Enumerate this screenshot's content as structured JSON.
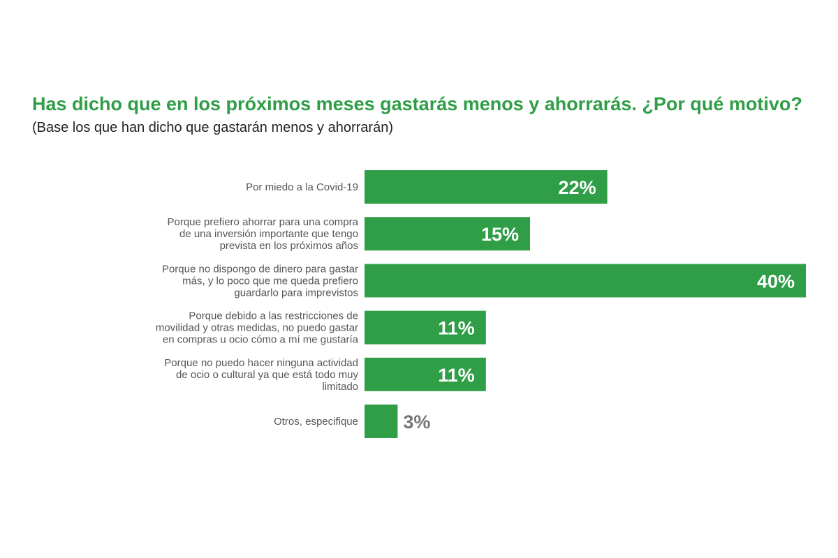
{
  "header": {
    "title": "Has dicho que en los próximos meses gastarás menos y ahorrarás. ¿Por qué motivo?",
    "subtitle": "(Base los que han dicho que gastarán menos y ahorrarán)"
  },
  "chart_data": {
    "type": "bar",
    "orientation": "horizontal",
    "title": "Has dicho que en los próximos meses gastarás menos y ahorrarás. ¿Por qué motivo?",
    "subtitle": "(Base los que han dicho que gastarán menos y ahorrarán)",
    "xlabel": "",
    "ylabel": "",
    "grid": false,
    "categories": [
      [
        "Por miedo a la Covid-19"
      ],
      [
        "Porque prefiero ahorrar para una compra",
        "de una inversión importante que tengo",
        "prevista en los próximos años"
      ],
      [
        "Porque no dispongo de dinero para gastar",
        "más, y lo poco que me queda prefiero",
        "guardarlo para imprevistos"
      ],
      [
        "Porque debido a las restricciones de",
        "movilidad y otras medidas, no puedo gastar",
        "en compras u ocio cómo a mí me gustaría"
      ],
      [
        "Porque no puedo hacer ninguna actividad",
        "de ocio o cultural ya que está todo muy",
        "limitado"
      ],
      [
        "Otros, especifique"
      ]
    ],
    "values": [
      22,
      15,
      40,
      11,
      11,
      3
    ],
    "value_labels": [
      "22%",
      "15%",
      "40%",
      "11%",
      "11%",
      "3%"
    ],
    "colors": {
      "bar": "#2f9e47",
      "label_inside": "#ffffff",
      "label_outside": "#777777",
      "category_text": "#555555"
    }
  }
}
